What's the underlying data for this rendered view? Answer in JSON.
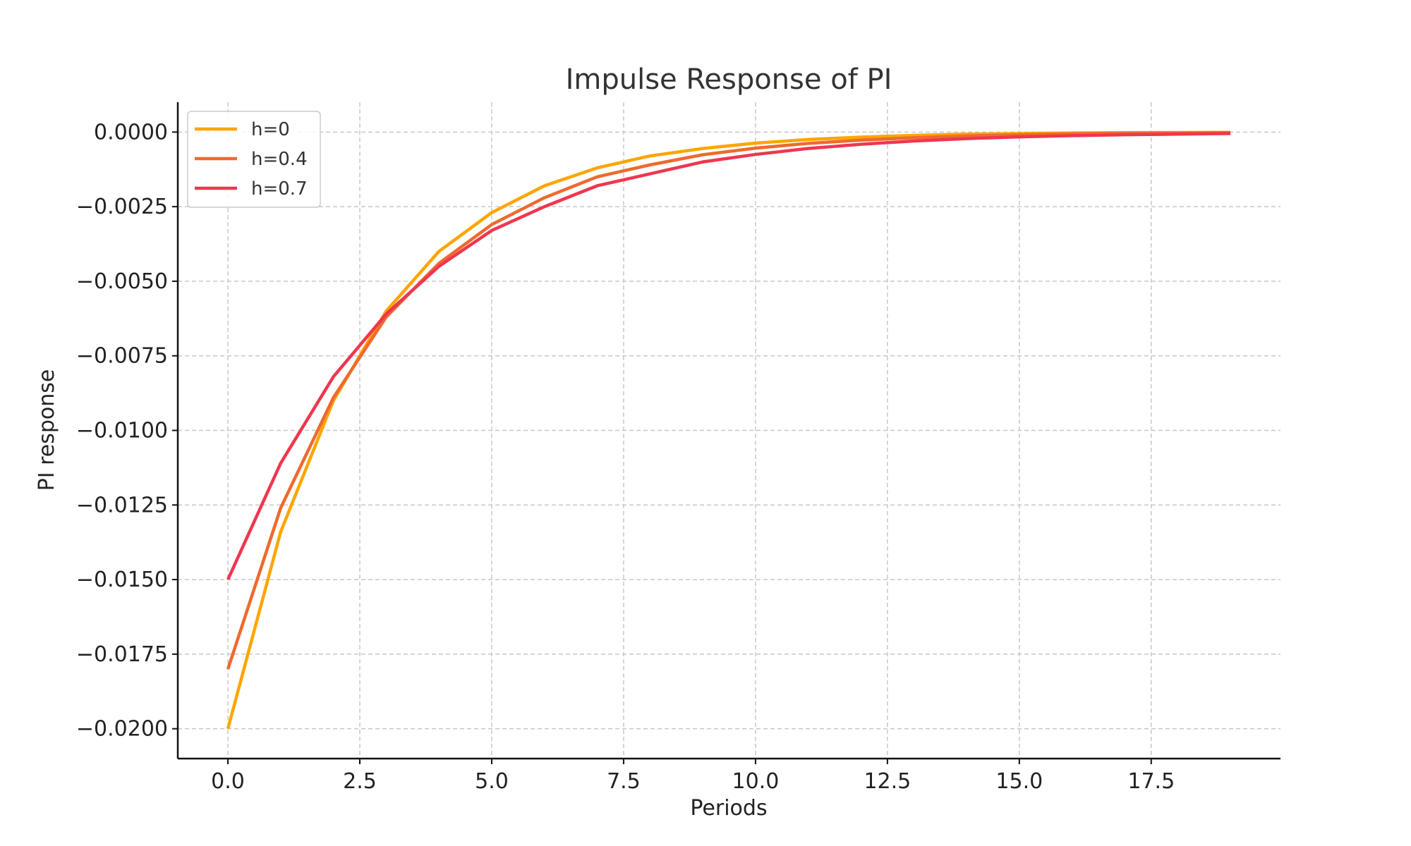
{
  "chart_data": {
    "type": "line",
    "title": "Impulse Response of PI",
    "xlabel": "Periods",
    "ylabel": "PI response",
    "xlim": [
      -0.95,
      19.95
    ],
    "ylim": [
      -0.021,
      0.001
    ],
    "xticks": [
      0,
      2.5,
      5,
      7.5,
      10,
      12.5,
      15,
      17.5
    ],
    "xtick_labels": [
      "0.0",
      "2.5",
      "5.0",
      "7.5",
      "10.0",
      "12.5",
      "15.0",
      "17.5"
    ],
    "yticks": [
      0,
      -0.0025,
      -0.005,
      -0.0075,
      -0.01,
      -0.0125,
      -0.015,
      -0.0175,
      -0.02
    ],
    "ytick_labels": [
      "0.0000",
      "−0.0025",
      "−0.0050",
      "−0.0075",
      "−0.0100",
      "−0.0125",
      "−0.0150",
      "−0.0175",
      "−0.0200"
    ],
    "grid": true,
    "legend_position": "top-left",
    "x": [
      0,
      1,
      2,
      3,
      4,
      5,
      6,
      7,
      8,
      9,
      10,
      11,
      12,
      13,
      14,
      15,
      16,
      17,
      18,
      19
    ],
    "series": [
      {
        "name": "h=0",
        "color": "#FFA500",
        "values": [
          -0.02,
          -0.0134,
          -0.009,
          -0.006,
          -0.004,
          -0.0027,
          -0.0018,
          -0.0012,
          -0.0008,
          -0.00055,
          -0.00037,
          -0.00025,
          -0.00017,
          -0.00011,
          -7e-05,
          -5e-05,
          -3e-05,
          -2e-05,
          -1.5e-05,
          -1e-05
        ]
      },
      {
        "name": "h=0.4",
        "color": "#EE6A2F",
        "values": [
          -0.018,
          -0.0126,
          -0.0089,
          -0.0062,
          -0.0044,
          -0.0031,
          -0.0022,
          -0.0015,
          -0.0011,
          -0.00076,
          -0.00054,
          -0.00038,
          -0.00027,
          -0.00019,
          -0.00013,
          -9e-05,
          -6e-05,
          -4e-05,
          -3e-05,
          -2e-05
        ]
      },
      {
        "name": "h=0.7",
        "color": "#F0364F",
        "values": [
          -0.015,
          -0.0111,
          -0.0082,
          -0.0061,
          -0.0045,
          -0.0033,
          -0.0025,
          -0.0018,
          -0.0014,
          -0.001,
          -0.00075,
          -0.00055,
          -0.00041,
          -0.0003,
          -0.00022,
          -0.00016,
          -0.00012,
          -9e-05,
          -7e-05,
          -5e-05
        ]
      }
    ]
  }
}
